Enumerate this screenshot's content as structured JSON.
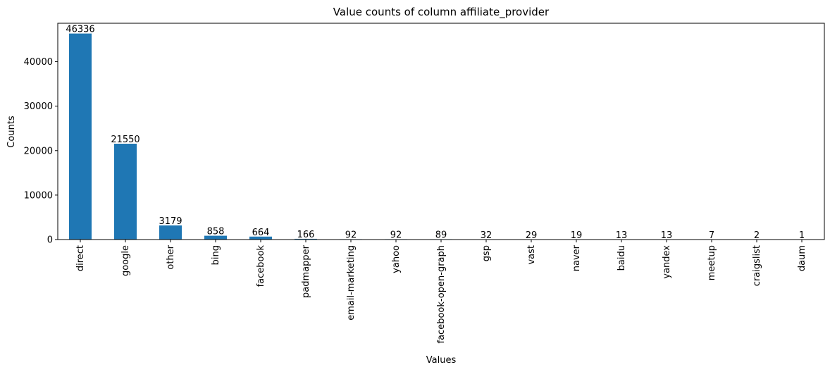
{
  "chart_data": {
    "type": "bar",
    "title": "Value counts of column affiliate_provider",
    "xlabel": "Values",
    "ylabel": "Counts",
    "categories": [
      "direct",
      "google",
      "other",
      "bing",
      "facebook",
      "padmapper",
      "email-marketing",
      "yahoo",
      "facebook-open-graph",
      "gsp",
      "vast",
      "naver",
      "baidu",
      "yandex",
      "meetup",
      "craigslist",
      "daum"
    ],
    "values": [
      46336,
      21550,
      3179,
      858,
      664,
      166,
      92,
      92,
      89,
      32,
      29,
      19,
      13,
      13,
      7,
      2,
      1
    ],
    "ylim": [
      0,
      48650
    ],
    "yticks": [
      0,
      10000,
      20000,
      30000,
      40000
    ],
    "bar_color": "#1f77b4",
    "grid": false,
    "legend": false
  }
}
